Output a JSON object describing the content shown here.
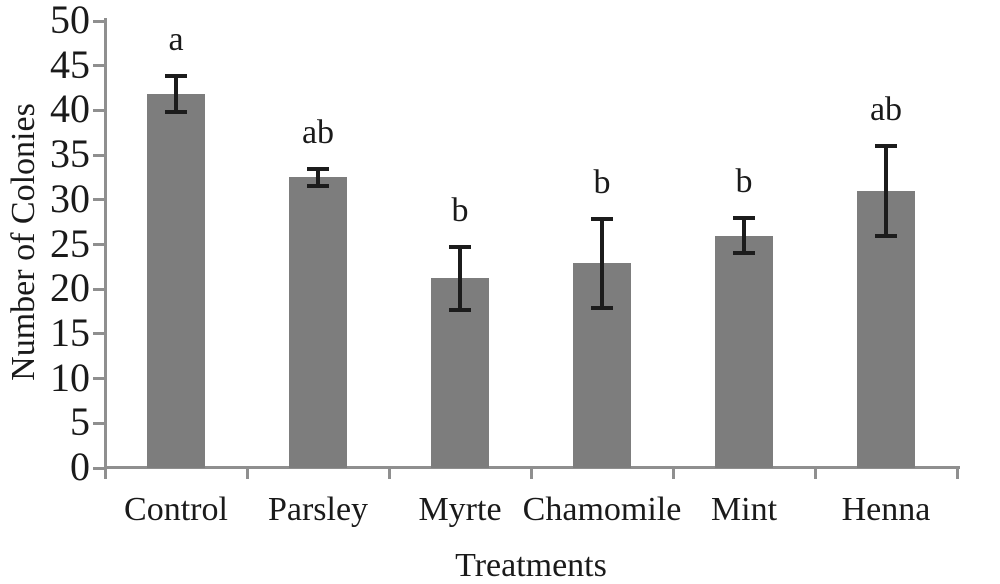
{
  "chart_data": {
    "type": "bar",
    "title": "",
    "xlabel": "Treatments",
    "ylabel": "Number of Colonies",
    "categories": [
      "Control",
      "Parsley",
      "Myrte",
      "Chamomile",
      "Mint",
      "Henna"
    ],
    "values": [
      41.8,
      32.5,
      21.2,
      22.9,
      26,
      31
    ],
    "error_bars": [
      2,
      1,
      3.5,
      5,
      2,
      5
    ],
    "significance_letters": [
      "a",
      "ab",
      "b",
      "b",
      "b",
      "ab"
    ],
    "ylim": [
      0,
      50
    ],
    "yticks": [
      0,
      5,
      10,
      15,
      20,
      25,
      30,
      35,
      40,
      45,
      50
    ],
    "grid": false,
    "legend": null,
    "colors": {
      "bar": "#7d7d7d",
      "axis": "#8f8f8f",
      "error_bar": "#1c1c1c",
      "text": "#1a1a1a"
    }
  }
}
